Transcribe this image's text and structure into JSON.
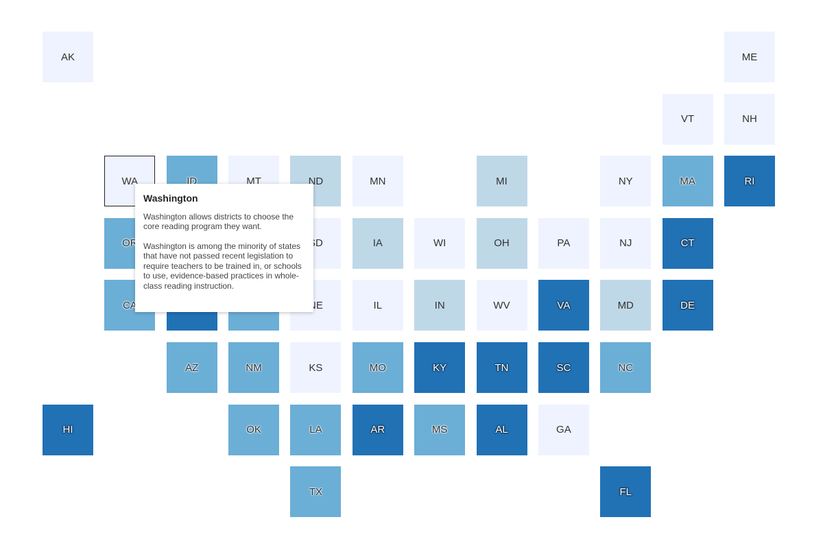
{
  "colors": {
    "level0": "#eff3ff",
    "level1": "#bfd8e8",
    "level2": "#6baed6",
    "level3": "#2171b5"
  },
  "states": [
    {
      "abbr": "AK",
      "col": 0,
      "row": 0,
      "level": 0
    },
    {
      "abbr": "ME",
      "col": 11,
      "row": 0,
      "level": 0
    },
    {
      "abbr": "VT",
      "col": 10,
      "row": 1,
      "level": 0
    },
    {
      "abbr": "NH",
      "col": 11,
      "row": 1,
      "level": 0
    },
    {
      "abbr": "WA",
      "col": 1,
      "row": 2,
      "level": 0,
      "active": true
    },
    {
      "abbr": "ID",
      "col": 2,
      "row": 2,
      "level": 2
    },
    {
      "abbr": "MT",
      "col": 3,
      "row": 2,
      "level": 0
    },
    {
      "abbr": "ND",
      "col": 4,
      "row": 2,
      "level": 1
    },
    {
      "abbr": "MN",
      "col": 5,
      "row": 2,
      "level": 0
    },
    {
      "abbr": "MI",
      "col": 7,
      "row": 2,
      "level": 1
    },
    {
      "abbr": "NY",
      "col": 9,
      "row": 2,
      "level": 0
    },
    {
      "abbr": "MA",
      "col": 10,
      "row": 2,
      "level": 2
    },
    {
      "abbr": "RI",
      "col": 11,
      "row": 2,
      "level": 3
    },
    {
      "abbr": "OR",
      "col": 1,
      "row": 3,
      "level": 2
    },
    {
      "abbr": "SD",
      "col": 4,
      "row": 3,
      "level": 0
    },
    {
      "abbr": "IA",
      "col": 5,
      "row": 3,
      "level": 1
    },
    {
      "abbr": "WI",
      "col": 6,
      "row": 3,
      "level": 0
    },
    {
      "abbr": "OH",
      "col": 7,
      "row": 3,
      "level": 1
    },
    {
      "abbr": "PA",
      "col": 8,
      "row": 3,
      "level": 0
    },
    {
      "abbr": "NJ",
      "col": 9,
      "row": 3,
      "level": 0
    },
    {
      "abbr": "CT",
      "col": 10,
      "row": 3,
      "level": 3
    },
    {
      "abbr": "CA",
      "col": 1,
      "row": 4,
      "level": 2
    },
    {
      "abbr": "",
      "col": 2,
      "row": 4,
      "level": 3
    },
    {
      "abbr": "",
      "col": 3,
      "row": 4,
      "level": 2
    },
    {
      "abbr": "NE",
      "col": 4,
      "row": 4,
      "level": 0
    },
    {
      "abbr": "IL",
      "col": 5,
      "row": 4,
      "level": 0
    },
    {
      "abbr": "IN",
      "col": 6,
      "row": 4,
      "level": 1
    },
    {
      "abbr": "WV",
      "col": 7,
      "row": 4,
      "level": 0
    },
    {
      "abbr": "VA",
      "col": 8,
      "row": 4,
      "level": 3
    },
    {
      "abbr": "MD",
      "col": 9,
      "row": 4,
      "level": 1
    },
    {
      "abbr": "DE",
      "col": 10,
      "row": 4,
      "level": 3
    },
    {
      "abbr": "AZ",
      "col": 2,
      "row": 5,
      "level": 2
    },
    {
      "abbr": "NM",
      "col": 3,
      "row": 5,
      "level": 2
    },
    {
      "abbr": "KS",
      "col": 4,
      "row": 5,
      "level": 0
    },
    {
      "abbr": "MO",
      "col": 5,
      "row": 5,
      "level": 2
    },
    {
      "abbr": "KY",
      "col": 6,
      "row": 5,
      "level": 3
    },
    {
      "abbr": "TN",
      "col": 7,
      "row": 5,
      "level": 3
    },
    {
      "abbr": "SC",
      "col": 8,
      "row": 5,
      "level": 3
    },
    {
      "abbr": "NC",
      "col": 9,
      "row": 5,
      "level": 2
    },
    {
      "abbr": "HI",
      "col": 0,
      "row": 6,
      "level": 3
    },
    {
      "abbr": "OK",
      "col": 3,
      "row": 6,
      "level": 2
    },
    {
      "abbr": "LA",
      "col": 4,
      "row": 6,
      "level": 2
    },
    {
      "abbr": "AR",
      "col": 5,
      "row": 6,
      "level": 3
    },
    {
      "abbr": "MS",
      "col": 6,
      "row": 6,
      "level": 2
    },
    {
      "abbr": "AL",
      "col": 7,
      "row": 6,
      "level": 3
    },
    {
      "abbr": "GA",
      "col": 8,
      "row": 6,
      "level": 0
    },
    {
      "abbr": "TX",
      "col": 4,
      "row": 7,
      "level": 2
    },
    {
      "abbr": "FL",
      "col": 9,
      "row": 7,
      "level": 3
    }
  ],
  "tooltip": {
    "title": "Washington",
    "paragraph1": "Washington allows districts to choose the core reading program they want.",
    "paragraph2": "Washington is among the minority of states that have not passed recent legislation to require teachers to be trained in, or schools to use, evidence-based practices in whole-class reading instruction."
  }
}
